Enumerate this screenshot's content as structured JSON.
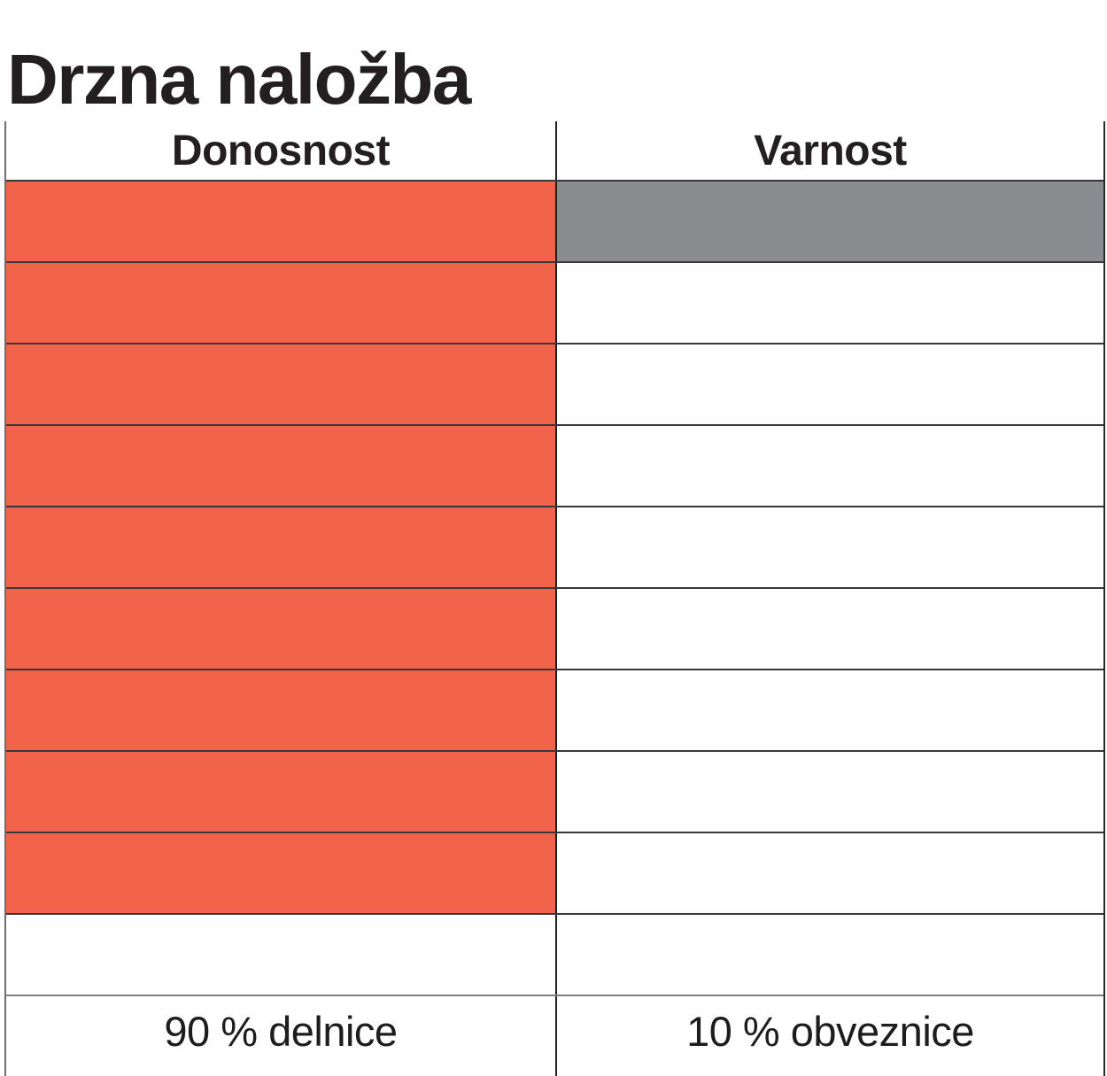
{
  "title": "Drzna naložba",
  "table": {
    "headers": [
      "Donosnost",
      "Varnost"
    ],
    "rows": [
      {
        "donosnost_filled": true,
        "varnost_filled": true
      },
      {
        "donosnost_filled": true,
        "varnost_filled": false
      },
      {
        "donosnost_filled": true,
        "varnost_filled": false
      },
      {
        "donosnost_filled": true,
        "varnost_filled": false
      },
      {
        "donosnost_filled": true,
        "varnost_filled": false
      },
      {
        "donosnost_filled": true,
        "varnost_filled": false
      },
      {
        "donosnost_filled": true,
        "varnost_filled": false
      },
      {
        "donosnost_filled": true,
        "varnost_filled": false
      },
      {
        "donosnost_filled": true,
        "varnost_filled": false
      },
      {
        "donosnost_filled": false,
        "varnost_filled": false
      }
    ],
    "footers": [
      "90 % delnice",
      "10 % obveznice"
    ]
  },
  "colors": {
    "donosnost_fill": "#F2634B",
    "varnost_fill": "#8A8C8F"
  },
  "chart_data": {
    "type": "table",
    "title": "Drzna naložba",
    "columns": [
      "Donosnost",
      "Varnost"
    ],
    "rows_total": 10,
    "series": [
      {
        "name": "Donosnost",
        "filled_cells": 9,
        "value_pct": 90,
        "label": "90 % delnice",
        "color": "#F2634B"
      },
      {
        "name": "Varnost",
        "filled_cells": 1,
        "value_pct": 10,
        "label": "10 % obveznice",
        "color": "#8A8C8F"
      }
    ],
    "legend_position": "bottom-row",
    "grid": true
  }
}
